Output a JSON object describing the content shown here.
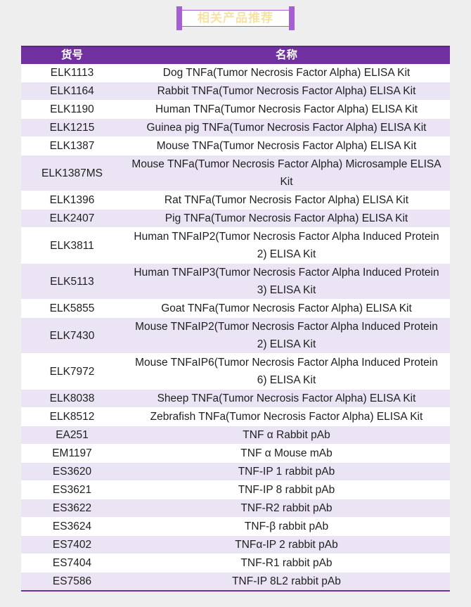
{
  "page": {
    "background_color": "#EFEEEF",
    "accent_color": "#7030A0"
  },
  "banner": {
    "title": "相关产品推荐",
    "title_color": "#F5E3A3",
    "border_color": "#A55FD5"
  },
  "table": {
    "header_bg": "#7030A0",
    "alt_row_bg": "#EAE4F4",
    "columns": [
      {
        "label": "货号"
      },
      {
        "label": "名称"
      }
    ],
    "rows": [
      {
        "code": "ELK1113",
        "name": "Dog TNFa(Tumor Necrosis Factor Alpha) ELISA Kit"
      },
      {
        "code": "ELK1164",
        "name": "Rabbit TNFa(Tumor Necrosis Factor Alpha) ELISA Kit"
      },
      {
        "code": "ELK1190",
        "name": "Human TNFa(Tumor Necrosis Factor Alpha) ELISA Kit"
      },
      {
        "code": "ELK1215",
        "name": "Guinea pig TNFa(Tumor Necrosis Factor Alpha) ELISA Kit"
      },
      {
        "code": "ELK1387",
        "name": "Mouse TNFa(Tumor Necrosis Factor Alpha) ELISA Kit"
      },
      {
        "code": "ELK1387MS",
        "name": "Mouse TNFa(Tumor Necrosis Factor Alpha) Microsample ELISA Kit"
      },
      {
        "code": "ELK1396",
        "name": "Rat TNFa(Tumor Necrosis Factor Alpha) ELISA Kit"
      },
      {
        "code": "ELK2407",
        "name": "Pig TNFa(Tumor Necrosis Factor Alpha) ELISA Kit"
      },
      {
        "code": "ELK3811",
        "name": "Human TNFaIP2(Tumor Necrosis Factor Alpha Induced Protein 2) ELISA Kit"
      },
      {
        "code": "ELK5113",
        "name": "Human TNFaIP3(Tumor Necrosis Factor Alpha Induced Protein 3) ELISA Kit"
      },
      {
        "code": "ELK5855",
        "name": "Goat TNFa(Tumor Necrosis Factor Alpha) ELISA Kit"
      },
      {
        "code": "ELK7430",
        "name": "Mouse TNFaIP2(Tumor Necrosis Factor Alpha Induced Protein 2) ELISA Kit"
      },
      {
        "code": "ELK7972",
        "name": "Mouse TNFaIP6(Tumor Necrosis Factor Alpha Induced Protein 6) ELISA Kit"
      },
      {
        "code": "ELK8038",
        "name": "Sheep TNFa(Tumor Necrosis Factor Alpha) ELISA Kit"
      },
      {
        "code": "ELK8512",
        "name": "Zebrafish TNFa(Tumor Necrosis Factor Alpha) ELISA Kit"
      },
      {
        "code": "EA251",
        "name": "TNF α Rabbit pAb"
      },
      {
        "code": "EM1197",
        "name": "TNF α Mouse mAb"
      },
      {
        "code": "ES3620",
        "name": "TNF-IP 1 rabbit pAb"
      },
      {
        "code": "ES3621",
        "name": "TNF-IP 8 rabbit pAb"
      },
      {
        "code": "ES3622",
        "name": "TNF-R2 rabbit pAb"
      },
      {
        "code": "ES3624",
        "name": "TNF-β rabbit pAb"
      },
      {
        "code": "ES7402",
        "name": "TNFα-IP 2 rabbit pAb"
      },
      {
        "code": "ES7404",
        "name": "TNF-R1 rabbit pAb"
      },
      {
        "code": "ES7586",
        "name": "TNF-IP 8L2 rabbit pAb"
      }
    ]
  }
}
